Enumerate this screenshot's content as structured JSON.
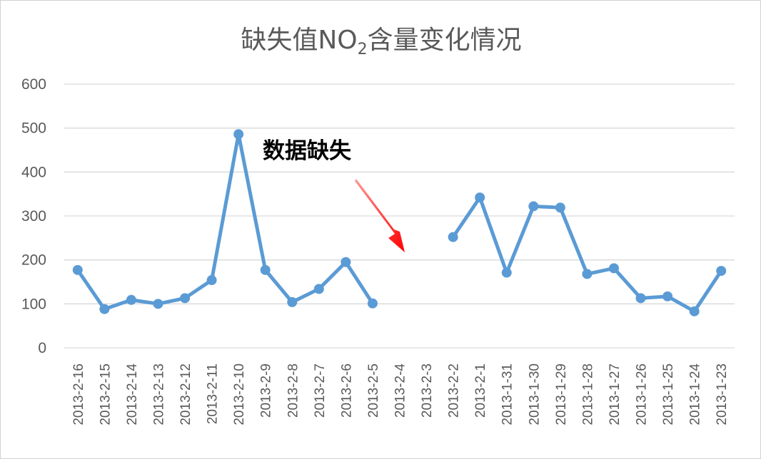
{
  "colors": {
    "series": "#5b9bd5",
    "grid": "#d9d9d9",
    "text": "#595959",
    "annotation": "#ff0000"
  },
  "chart_data": {
    "type": "line",
    "title": "缺失值NO2含量变化情况",
    "title_parts": {
      "main": "缺失值NO",
      "sub": "2",
      "rest": "含量变化情况"
    },
    "xlabel": "",
    "ylabel": "",
    "ylim": [
      0,
      600
    ],
    "yticks": [
      "0",
      "100",
      "200",
      "300",
      "400",
      "500",
      "600"
    ],
    "grid": "horizontal",
    "legend": "none",
    "categories": [
      "2013-2-16",
      "2013-2-15",
      "2013-2-14",
      "2013-2-13",
      "2013-2-12",
      "2013-2-11",
      "2013-2-10",
      "2013-2-9",
      "2013-2-8",
      "2013-2-7",
      "2013-2-6",
      "2013-2-5",
      "2013-2-4",
      "2013-2-3",
      "2013-2-2",
      "2013-2-1",
      "2013-1-31",
      "2013-1-30",
      "2013-1-29",
      "2013-1-28",
      "2013-1-27",
      "2013-1-26",
      "2013-1-25",
      "2013-1-24",
      "2013-1-23"
    ],
    "series": [
      {
        "values": [
          177,
          88,
          109,
          100,
          113,
          154,
          486,
          177,
          104,
          134,
          195,
          101,
          null,
          null,
          252,
          342,
          171,
          322,
          319,
          168,
          181,
          113,
          117,
          83,
          175
        ]
      }
    ],
    "annotation": {
      "text": "数据缺失",
      "arrow_target_category": "2013-2-4"
    }
  }
}
